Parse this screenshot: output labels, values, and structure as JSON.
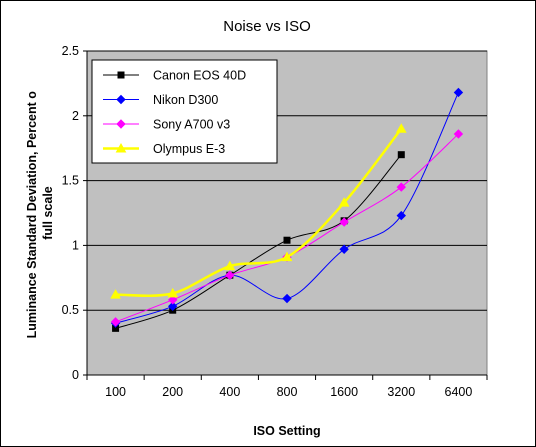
{
  "chart_data": {
    "type": "line",
    "title": "Noise vs ISO",
    "xlabel": "ISO Setting",
    "ylabel": "Luminance Standard Deviation, Percent of full scale",
    "ylabel_lines": [
      "Luminance Standard Deviation, Percent o",
      "full scale"
    ],
    "categories": [
      "100",
      "200",
      "400",
      "800",
      "1600",
      "3200",
      "6400"
    ],
    "ylim": [
      0,
      2.5
    ],
    "yticks": [
      "0",
      "0.5",
      "1",
      "1.5",
      "2",
      "2.5"
    ],
    "grid": true,
    "legend_position": "top-left",
    "series": [
      {
        "name": "Canon EOS 40D",
        "color": "#000000",
        "marker": "square",
        "values": [
          0.36,
          0.5,
          0.77,
          1.04,
          1.19,
          1.7,
          null
        ]
      },
      {
        "name": "Nikon D300",
        "color": "#0000ff",
        "marker": "diamond",
        "values": [
          0.4,
          0.53,
          0.77,
          0.59,
          0.97,
          1.23,
          2.18
        ]
      },
      {
        "name": "Sony A700 v3",
        "color": "#ff00ff",
        "marker": "diamond",
        "values": [
          0.41,
          0.58,
          0.77,
          0.91,
          1.18,
          1.45,
          1.86
        ]
      },
      {
        "name": "Olympus E-3",
        "color": "#ffff00",
        "marker": "triangle",
        "values": [
          0.62,
          0.63,
          0.84,
          0.91,
          1.33,
          1.9,
          null
        ]
      }
    ]
  }
}
